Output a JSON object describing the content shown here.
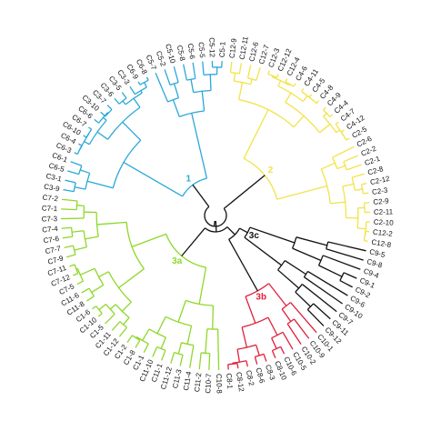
{
  "leaves": [
    {
      "label": "C12-9",
      "cluster": "yellow"
    },
    {
      "label": "C12-11",
      "cluster": "yellow"
    },
    {
      "label": "C12-6",
      "cluster": "yellow"
    },
    {
      "label": "C12-7",
      "cluster": "yellow"
    },
    {
      "label": "C12-3",
      "cluster": "yellow"
    },
    {
      "label": "C12-12",
      "cluster": "yellow"
    },
    {
      "label": "C12-4",
      "cluster": "yellow"
    },
    {
      "label": "C4-6",
      "cluster": "yellow"
    },
    {
      "label": "C4-11",
      "cluster": "yellow"
    },
    {
      "label": "C4-5",
      "cluster": "yellow"
    },
    {
      "label": "C4-8",
      "cluster": "yellow"
    },
    {
      "label": "C4-9",
      "cluster": "yellow"
    },
    {
      "label": "C4-4",
      "cluster": "yellow"
    },
    {
      "label": "C4-7",
      "cluster": "yellow"
    },
    {
      "label": "C4-12",
      "cluster": "yellow"
    },
    {
      "label": "C2-5",
      "cluster": "yellow"
    },
    {
      "label": "C2-6",
      "cluster": "yellow"
    },
    {
      "label": "C2-2",
      "cluster": "yellow"
    },
    {
      "label": "C2-1",
      "cluster": "yellow"
    },
    {
      "label": "C2-8",
      "cluster": "yellow"
    },
    {
      "label": "C2-12",
      "cluster": "yellow"
    },
    {
      "label": "C2-3",
      "cluster": "yellow"
    },
    {
      "label": "C2-9",
      "cluster": "yellow"
    },
    {
      "label": "C2-11",
      "cluster": "yellow"
    },
    {
      "label": "C2-10",
      "cluster": "yellow"
    },
    {
      "label": "C12-2",
      "cluster": "yellow"
    },
    {
      "label": "C12-8",
      "cluster": "yellow"
    },
    {
      "label": "C9-5",
      "cluster": "black"
    },
    {
      "label": "C9-8",
      "cluster": "black"
    },
    {
      "label": "C9-4",
      "cluster": "black"
    },
    {
      "label": "C9-1",
      "cluster": "black"
    },
    {
      "label": "C9-2",
      "cluster": "black"
    },
    {
      "label": "C9-6",
      "cluster": "black"
    },
    {
      "label": "C9-10",
      "cluster": "black"
    },
    {
      "label": "C9-7",
      "cluster": "black"
    },
    {
      "label": "C9-11",
      "cluster": "black"
    },
    {
      "label": "C9-12",
      "cluster": "black"
    },
    {
      "label": "C10-1",
      "cluster": "red"
    },
    {
      "label": "C10-9",
      "cluster": "red"
    },
    {
      "label": "C10-2",
      "cluster": "red"
    },
    {
      "label": "C10-5",
      "cluster": "red"
    },
    {
      "label": "C10-6",
      "cluster": "red"
    },
    {
      "label": "C8-10",
      "cluster": "red"
    },
    {
      "label": "C8-3",
      "cluster": "red"
    },
    {
      "label": "C8-6",
      "cluster": "red"
    },
    {
      "label": "C8-2",
      "cluster": "red"
    },
    {
      "label": "C8-12",
      "cluster": "red"
    },
    {
      "label": "C8-1",
      "cluster": "red"
    },
    {
      "label": "C10-8",
      "cluster": "green"
    },
    {
      "label": "C10-7",
      "cluster": "green"
    },
    {
      "label": "C11-2",
      "cluster": "green"
    },
    {
      "label": "C11-4",
      "cluster": "green"
    },
    {
      "label": "C11-3",
      "cluster": "green"
    },
    {
      "label": "C11-12",
      "cluster": "green"
    },
    {
      "label": "C11-1",
      "cluster": "green"
    },
    {
      "label": "C11-10",
      "cluster": "green"
    },
    {
      "label": "C1-1",
      "cluster": "green"
    },
    {
      "label": "C1-8",
      "cluster": "green"
    },
    {
      "label": "C1-2",
      "cluster": "green"
    },
    {
      "label": "C1-12",
      "cluster": "green"
    },
    {
      "label": "C1-11",
      "cluster": "green"
    },
    {
      "label": "C1-5",
      "cluster": "green"
    },
    {
      "label": "C1-10",
      "cluster": "green"
    },
    {
      "label": "C1-6",
      "cluster": "green"
    },
    {
      "label": "C11-8",
      "cluster": "green"
    },
    {
      "label": "C11-6",
      "cluster": "green"
    },
    {
      "label": "C7-5",
      "cluster": "green"
    },
    {
      "label": "C7-12",
      "cluster": "green"
    },
    {
      "label": "C7-11",
      "cluster": "green"
    },
    {
      "label": "C7-9",
      "cluster": "green"
    },
    {
      "label": "C7-7",
      "cluster": "green"
    },
    {
      "label": "C7-6",
      "cluster": "green"
    },
    {
      "label": "C7-4",
      "cluster": "green"
    },
    {
      "label": "C7-3",
      "cluster": "green"
    },
    {
      "label": "C7-1",
      "cluster": "green"
    },
    {
      "label": "C7-2",
      "cluster": "green"
    },
    {
      "label": "C3-9",
      "cluster": "blue"
    },
    {
      "label": "C3-1",
      "cluster": "blue"
    },
    {
      "label": "C6-5",
      "cluster": "blue"
    },
    {
      "label": "C6-1",
      "cluster": "blue"
    },
    {
      "label": "C6-3",
      "cluster": "blue"
    },
    {
      "label": "C6-4",
      "cluster": "blue"
    },
    {
      "label": "C6-10",
      "cluster": "blue"
    },
    {
      "label": "C6-7",
      "cluster": "blue"
    },
    {
      "label": "C6-6",
      "cluster": "blue"
    },
    {
      "label": "C3-10",
      "cluster": "blue"
    },
    {
      "label": "C3-7",
      "cluster": "blue"
    },
    {
      "label": "C3-6",
      "cluster": "blue"
    },
    {
      "label": "C3-5",
      "cluster": "blue"
    },
    {
      "label": "C3-3",
      "cluster": "blue"
    },
    {
      "label": "C6-9",
      "cluster": "blue"
    },
    {
      "label": "C6-8",
      "cluster": "blue"
    },
    {
      "label": "C5-7",
      "cluster": "blue"
    },
    {
      "label": "C5-2",
      "cluster": "blue"
    },
    {
      "label": "C5-10",
      "cluster": "blue"
    },
    {
      "label": "C5-8",
      "cluster": "blue"
    },
    {
      "label": "C5-6",
      "cluster": "blue"
    },
    {
      "label": "C5-5",
      "cluster": "blue"
    },
    {
      "label": "C5-12",
      "cluster": "blue"
    },
    {
      "label": "C5-1",
      "cluster": "blue"
    }
  ],
  "cluster_labels": [
    {
      "id": "yellow",
      "text": "2"
    },
    {
      "id": "blue",
      "text": "1"
    },
    {
      "id": "black",
      "text": "3c"
    },
    {
      "id": "red",
      "text": "3b"
    },
    {
      "id": "green",
      "text": "3a"
    }
  ],
  "colors": {
    "yellow": "#f2e34a",
    "blue": "#2aa8d8",
    "black": "#111111",
    "red": "#e0203c",
    "green": "#8ed82a",
    "root": "#111111"
  }
}
